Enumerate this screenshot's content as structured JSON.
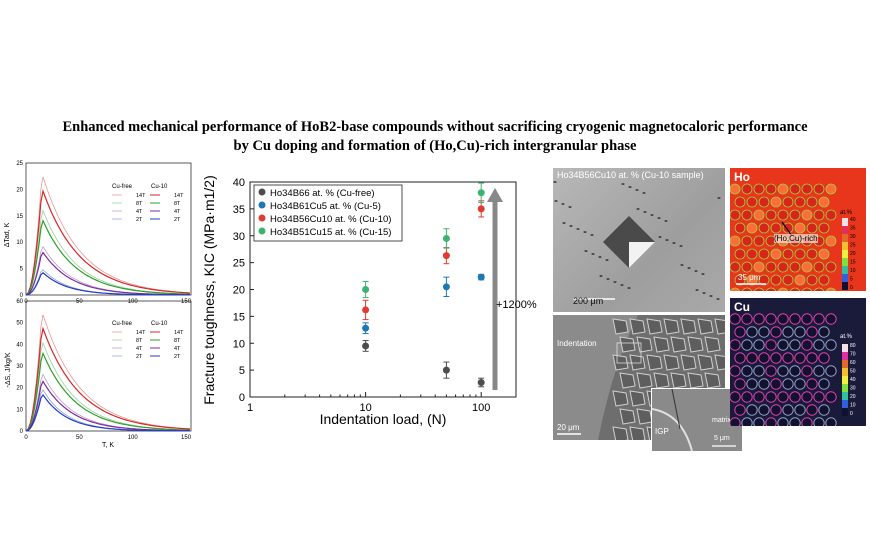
{
  "title": {
    "line1": "Enhanced mechanical performance of HoB2-base compounds without sacrificing cryogenic magnetocaloric performance",
    "line2": "by Cu doping and formation of (Ho,Cu)-rich intergranular phase"
  },
  "left_plots": {
    "fields": [
      "14T",
      "8T",
      "4T",
      "2T"
    ],
    "legend_headers": [
      "Cu-free",
      "Cu-10"
    ],
    "colors": {
      "14T": "#d62728",
      "8T": "#2ca02c",
      "4T": "#7b2d9c",
      "2T": "#1f3fbf"
    },
    "top": {
      "ylabel": "ΔTad, K",
      "yticks": [
        "0",
        "5",
        "10",
        "15",
        "20",
        "25"
      ],
      "xticks": [
        "0",
        "50",
        "100",
        "150"
      ]
    },
    "bottom": {
      "ylabel": "-ΔS, J/kg/K",
      "yticks": [
        "0",
        "10",
        "20",
        "30",
        "40",
        "50",
        "60"
      ],
      "xticks": [
        "0",
        "50",
        "100",
        "150"
      ],
      "xlabel": "T, K"
    }
  },
  "chart_data": {
    "type": "scatter",
    "xscale": "log",
    "xlim": [
      1,
      200
    ],
    "ylim": [
      0,
      40
    ],
    "xticks": [
      "1",
      "10",
      "100"
    ],
    "yticks": [
      "0",
      "5",
      "10",
      "15",
      "20",
      "25",
      "30",
      "35",
      "40"
    ],
    "xlabel": "Indentation load, (N)",
    "ylabel": "Fracture toughness, KIC (MPa·m1/2)",
    "annotation": "+1200%",
    "series": [
      {
        "name": "Ho34B66 at. % (Cu-free)",
        "color": "#4d4d4d",
        "x": [
          10,
          50,
          100
        ],
        "y": [
          9.5,
          5.0,
          2.7
        ],
        "err": [
          1.0,
          1.5,
          0.8
        ]
      },
      {
        "name": "Ho34B61Cu5 at. % (Cu-5)",
        "color": "#1f77b4",
        "x": [
          10,
          50,
          100
        ],
        "y": [
          12.8,
          20.5,
          22.3
        ],
        "err": [
          1.0,
          1.8,
          0.5
        ]
      },
      {
        "name": "Ho34B56Cu10 at. % (Cu-10)",
        "color": "#e03c31",
        "x": [
          10,
          50,
          100
        ],
        "y": [
          16.2,
          26.3,
          35.0
        ],
        "err": [
          1.8,
          1.5,
          1.5
        ]
      },
      {
        "name": "Ho34B51Cu15 at. % (Cu-15)",
        "color": "#3cb371",
        "x": [
          10,
          50,
          100
        ],
        "y": [
          20.0,
          29.5,
          38.0
        ],
        "err": [
          1.5,
          1.8,
          1.8
        ]
      }
    ]
  },
  "sem": {
    "top_label": "Ho34B56Cu10 at. % (Cu-10 sample)",
    "top_scale": "200 μm",
    "bottom_label": "Indentation",
    "bottom_scale": "20 μm",
    "inset_label_igp": "IGP",
    "inset_label_matrix": "matrix",
    "inset_scale": "5 μm"
  },
  "eds": {
    "ho_label": "Ho",
    "ho_annotation": "(Ho,Cu)-rich",
    "ho_scale": "35 μm",
    "ho_unit": "at.%",
    "ho_ticks": [
      "40",
      "35",
      "30",
      "25",
      "20",
      "15",
      "10",
      "5",
      "0"
    ],
    "cu_label": "Cu",
    "cu_unit": "at.%",
    "cu_ticks": [
      "80",
      "70",
      "60",
      "50",
      "40",
      "30",
      "20",
      "10",
      "0"
    ]
  }
}
